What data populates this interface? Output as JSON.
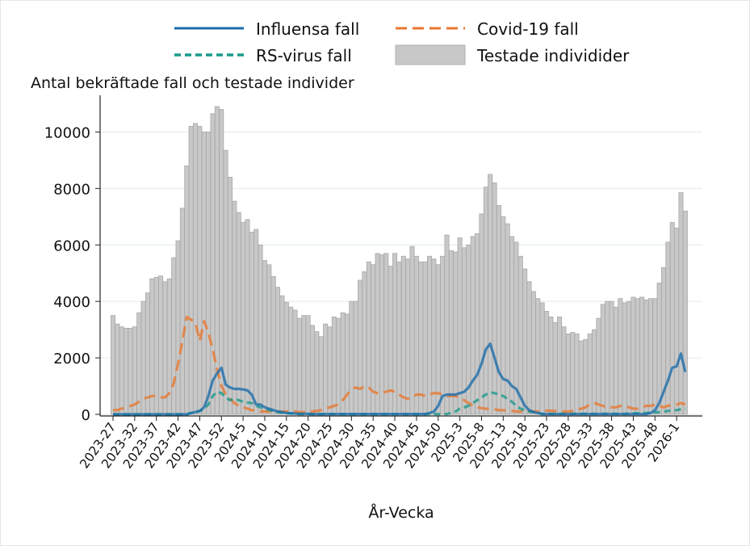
{
  "chart_data": {
    "type": "bar",
    "title": "",
    "ylabel": "Antal bekräftade fall och testade individer",
    "xlabel": "År-Vecka",
    "ylim": [
      0,
      11300
    ],
    "yticks": [
      0,
      2000,
      4000,
      6000,
      8000,
      10000
    ],
    "grid": true,
    "legend_placement": "top",
    "categories": [
      "2023-27",
      "2023-28",
      "2023-29",
      "2023-30",
      "2023-31",
      "2023-32",
      "2023-33",
      "2023-34",
      "2023-35",
      "2023-36",
      "2023-37",
      "2023-38",
      "2023-39",
      "2023-40",
      "2023-41",
      "2023-42",
      "2023-43",
      "2023-44",
      "2023-45",
      "2023-46",
      "2023-47",
      "2023-48",
      "2023-49",
      "2023-50",
      "2023-51",
      "2023-52",
      "2024-1",
      "2024-2",
      "2024-3",
      "2024-4",
      "2024-5",
      "2024-6",
      "2024-7",
      "2024-8",
      "2024-9",
      "2024-10",
      "2024-11",
      "2024-12",
      "2024-13",
      "2024-14",
      "2024-15",
      "2024-16",
      "2024-17",
      "2024-18",
      "2024-19",
      "2024-20",
      "2024-21",
      "2024-22",
      "2024-23",
      "2024-24",
      "2024-25",
      "2024-26",
      "2024-27",
      "2024-28",
      "2024-29",
      "2024-30",
      "2024-31",
      "2024-32",
      "2024-33",
      "2024-34",
      "2024-35",
      "2024-36",
      "2024-37",
      "2024-38",
      "2024-39",
      "2024-40",
      "2024-41",
      "2024-42",
      "2024-43",
      "2024-44",
      "2024-45",
      "2024-46",
      "2024-47",
      "2024-48",
      "2024-49",
      "2024-50",
      "2024-51",
      "2024-52",
      "2025-1",
      "2025-2",
      "2025-3",
      "2025-4",
      "2025-5",
      "2025-6",
      "2025-7",
      "2025-8",
      "2025-9",
      "2025-10",
      "2025-11",
      "2025-12",
      "2025-13",
      "2025-14",
      "2025-15",
      "2025-16",
      "2025-17",
      "2025-18",
      "2025-19",
      "2025-20",
      "2025-21",
      "2025-22",
      "2025-23",
      "2025-24",
      "2025-25",
      "2025-26",
      "2025-27",
      "2025-28",
      "2025-29",
      "2025-30",
      "2025-31",
      "2025-32",
      "2025-33",
      "2025-34",
      "2025-35",
      "2025-36",
      "2025-37",
      "2025-38",
      "2025-39",
      "2025-40",
      "2025-41",
      "2025-42",
      "2025-43",
      "2025-44",
      "2025-45",
      "2025-46",
      "2025-47",
      "2025-48",
      "2025-49",
      "2025-50",
      "2025-51",
      "2025-52",
      "2026-1",
      "2026-2",
      "2026-3"
    ],
    "xtick_labels": [
      "2023-27",
      "2023-32",
      "2023-37",
      "2023-42",
      "2023-47",
      "2023-52",
      "2024-5",
      "2024-10",
      "2024-15",
      "2024-20",
      "2024-25",
      "2024-30",
      "2024-35",
      "2024-40",
      "2024-45",
      "2024-50",
      "2025-3",
      "2025-8",
      "2025-13",
      "2025-18",
      "2025-23",
      "2025-28",
      "2025-33",
      "2025-38",
      "2025-43",
      "2025-48",
      "2026-1"
    ],
    "series": [
      {
        "name": "Testade individider",
        "type": "bar",
        "color": "#c8c8c8",
        "values": [
          3500,
          3200,
          3100,
          3050,
          3050,
          3100,
          3600,
          4000,
          4300,
          4800,
          4850,
          4900,
          4700,
          4800,
          5550,
          6150,
          7300,
          8800,
          10200,
          10300,
          10200,
          10000,
          10000,
          10650,
          10900,
          10800,
          9350,
          8400,
          7550,
          7150,
          6800,
          6900,
          6450,
          6550,
          6000,
          5450,
          5300,
          4880,
          4500,
          4200,
          3970,
          3800,
          3690,
          3400,
          3500,
          3500,
          3150,
          2930,
          2750,
          3200,
          3100,
          3450,
          3400,
          3600,
          3550,
          4000,
          4000,
          4750,
          5050,
          5400,
          5300,
          5700,
          5650,
          5700,
          5250,
          5700,
          5400,
          5600,
          5500,
          5950,
          5600,
          5400,
          5400,
          5600,
          5500,
          5300,
          5600,
          6350,
          5800,
          5750,
          6250,
          5900,
          6000,
          6300,
          6400,
          7100,
          8050,
          8500,
          8200,
          7400,
          7000,
          6750,
          6300,
          6100,
          5600,
          5150,
          4700,
          4350,
          4100,
          3950,
          3650,
          3450,
          3250,
          3450,
          3100,
          2850,
          2900,
          2850,
          2600,
          2650,
          2850,
          3000,
          3400,
          3900,
          4000,
          4000,
          3800,
          4100,
          3950,
          4000,
          4150,
          4100,
          4150,
          4050,
          4100,
          4100,
          4650,
          5200,
          6100,
          6800,
          6600,
          7850,
          7200
        ]
      },
      {
        "name": "Influensa fall",
        "type": "line",
        "color": "#1a6bab",
        "dash": "solid",
        "values": [
          0,
          0,
          0,
          0,
          0,
          0,
          0,
          0,
          0,
          0,
          0,
          0,
          0,
          0,
          0,
          0,
          0,
          0,
          50,
          80,
          120,
          250,
          650,
          1200,
          1450,
          1650,
          1050,
          950,
          900,
          900,
          880,
          850,
          700,
          350,
          350,
          250,
          200,
          150,
          100,
          80,
          50,
          40,
          30,
          20,
          20,
          20,
          10,
          10,
          10,
          10,
          10,
          10,
          10,
          10,
          10,
          10,
          10,
          10,
          10,
          10,
          10,
          10,
          10,
          10,
          10,
          10,
          10,
          10,
          10,
          10,
          10,
          10,
          10,
          50,
          100,
          300,
          650,
          700,
          700,
          700,
          750,
          800,
          950,
          1200,
          1400,
          1800,
          2300,
          2500,
          2000,
          1500,
          1250,
          1200,
          1000,
          900,
          600,
          300,
          150,
          80,
          50,
          10,
          10,
          10,
          10,
          10,
          10,
          10,
          10,
          10,
          10,
          10,
          10,
          10,
          10,
          10,
          10,
          10,
          10,
          10,
          10,
          10,
          10,
          10,
          10,
          10,
          50,
          150,
          400,
          800,
          1200,
          1650,
          1700,
          2150,
          1500
        ]
      },
      {
        "name": "Covid-19 fall",
        "type": "line",
        "color": "#e8772e",
        "dash": "long-dash",
        "values": [
          150,
          150,
          200,
          250,
          300,
          350,
          450,
          550,
          600,
          650,
          650,
          600,
          600,
          750,
          1100,
          1800,
          2600,
          3450,
          3350,
          3250,
          2600,
          3300,
          2900,
          2300,
          1600,
          1000,
          700,
          550,
          400,
          300,
          250,
          200,
          150,
          130,
          100,
          100,
          100,
          100,
          100,
          100,
          100,
          100,
          100,
          80,
          80,
          100,
          100,
          120,
          150,
          200,
          250,
          300,
          350,
          500,
          700,
          900,
          950,
          900,
          1000,
          950,
          800,
          750,
          750,
          800,
          850,
          800,
          700,
          600,
          550,
          600,
          700,
          700,
          650,
          700,
          750,
          750,
          700,
          650,
          650,
          650,
          600,
          500,
          400,
          300,
          250,
          220,
          200,
          200,
          180,
          150,
          150,
          130,
          120,
          100,
          100,
          100,
          100,
          100,
          100,
          120,
          130,
          130,
          120,
          100,
          100,
          100,
          120,
          150,
          200,
          250,
          350,
          400,
          350,
          300,
          250,
          250,
          250,
          300,
          300,
          250,
          200,
          200,
          250,
          300,
          300,
          350,
          300,
          250,
          300,
          350,
          350,
          400,
          350
        ]
      },
      {
        "name": "RS-virus fall",
        "type": "line",
        "color": "#1a9a8a",
        "dash": "short-dash",
        "values": [
          0,
          0,
          0,
          0,
          0,
          0,
          0,
          0,
          0,
          0,
          0,
          0,
          0,
          0,
          0,
          0,
          0,
          0,
          50,
          80,
          120,
          200,
          350,
          650,
          800,
          750,
          600,
          500,
          550,
          500,
          450,
          420,
          400,
          300,
          250,
          200,
          150,
          120,
          80,
          60,
          40,
          30,
          20,
          10,
          10,
          10,
          10,
          10,
          10,
          10,
          10,
          10,
          10,
          10,
          10,
          10,
          10,
          10,
          10,
          10,
          10,
          10,
          10,
          10,
          10,
          10,
          10,
          10,
          10,
          10,
          10,
          10,
          10,
          10,
          10,
          10,
          10,
          10,
          50,
          100,
          200,
          250,
          300,
          400,
          500,
          600,
          700,
          780,
          750,
          700,
          650,
          550,
          450,
          300,
          200,
          150,
          100,
          80,
          50,
          20,
          20,
          20,
          20,
          20,
          20,
          20,
          20,
          20,
          20,
          20,
          20,
          20,
          20,
          20,
          20,
          20,
          20,
          20,
          20,
          30,
          40,
          40,
          50,
          50,
          60,
          70,
          80,
          100,
          120,
          150,
          150,
          180,
          200
        ]
      }
    ]
  }
}
